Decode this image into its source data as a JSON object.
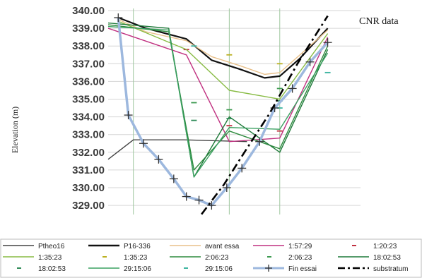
{
  "chart_data": {
    "type": "line",
    "title": "CNR data",
    "ylabel": "Elevation (m)",
    "xlabel": "",
    "ylim": [
      328.5,
      340.0
    ],
    "xlim": [
      0,
      10
    ],
    "grid": true,
    "legend_position": "bottom",
    "yticks": [
      "340.00",
      "339.00",
      "338.00",
      "337.00",
      "336.00",
      "335.00",
      "334.00",
      "333.00",
      "332.00",
      "331.00",
      "330.00",
      "329.00"
    ],
    "series": [
      {
        "name": "Ptheo16",
        "color": "#444444",
        "style": "line",
        "points": [
          [
            0.0,
            331.6
          ],
          [
            1.0,
            332.7
          ],
          [
            3.0,
            332.7
          ],
          [
            5.5,
            332.6
          ]
        ]
      },
      {
        "name": "P16-336",
        "color": "#111111",
        "style": "line",
        "points": [
          [
            0.4,
            339.6
          ],
          [
            1.5,
            339.0
          ],
          [
            3.1,
            338.4
          ],
          [
            4.1,
            337.2
          ],
          [
            5.2,
            336.7
          ],
          [
            6.2,
            336.2
          ],
          [
            6.8,
            336.3
          ],
          [
            7.6,
            337.3
          ],
          [
            8.7,
            339.0
          ]
        ]
      },
      {
        "name": "avant essa",
        "color": "#E8C08A",
        "style": "line",
        "points": [
          [
            0.4,
            339.5
          ],
          [
            1.5,
            338.8
          ],
          [
            3.1,
            338.3
          ],
          [
            4.1,
            337.4
          ],
          [
            5.2,
            336.9
          ],
          [
            6.2,
            336.4
          ],
          [
            6.8,
            336.5
          ],
          [
            7.6,
            337.5
          ],
          [
            8.7,
            338.9
          ]
        ]
      },
      {
        "name": "1:57:29",
        "color": "#C03080",
        "style": "line",
        "points": [
          [
            0.0,
            339.0
          ],
          [
            3.1,
            337.5
          ],
          [
            4.8,
            332.6
          ],
          [
            6.8,
            332.8
          ],
          [
            8.7,
            338.5
          ]
        ]
      },
      {
        "name": "1:20:23",
        "color": "#C03040",
        "style": "dash",
        "points": [
          [
            3.1,
            337.8
          ],
          [
            4.8,
            333.5
          ],
          [
            6.8,
            333.2
          ]
        ]
      },
      {
        "name": "1:35:23",
        "color": "#88BB44",
        "style": "line",
        "points": [
          [
            0.4,
            339.4
          ],
          [
            3.1,
            337.8
          ],
          [
            4.8,
            335.5
          ],
          [
            6.8,
            335.0
          ],
          [
            8.7,
            338.7
          ]
        ]
      },
      {
        "name": "1:35:23",
        "color": "#BBB020",
        "style": "dash",
        "points": [
          [
            4.8,
            337.5
          ],
          [
            6.8,
            337.0
          ]
        ]
      },
      {
        "name": "2:06:23",
        "color": "#2E8B3E",
        "style": "line",
        "points": [
          [
            0.0,
            339.2
          ],
          [
            2.4,
            338.8
          ],
          [
            3.4,
            331.0
          ],
          [
            4.8,
            333.2
          ],
          [
            6.8,
            332.2
          ],
          [
            8.7,
            338.0
          ]
        ]
      },
      {
        "name": "2:06:23",
        "color": "#3C9A50",
        "style": "dash",
        "points": [
          [
            3.4,
            334.8
          ],
          [
            4.8,
            334.4
          ],
          [
            6.8,
            335.6
          ]
        ]
      },
      {
        "name": "18:02:53",
        "color": "#1F7A3A",
        "style": "line",
        "points": [
          [
            0.0,
            339.3
          ],
          [
            2.4,
            339.0
          ],
          [
            3.4,
            330.6
          ],
          [
            4.8,
            334.0
          ],
          [
            6.8,
            332.0
          ],
          [
            8.7,
            337.8
          ]
        ]
      },
      {
        "name": "18:02:53",
        "color": "#2E8B57",
        "style": "dash",
        "points": [
          [
            3.4,
            333.8
          ],
          [
            4.8,
            333.9
          ],
          [
            6.8,
            334.9
          ]
        ]
      },
      {
        "name": "29:15:06",
        "color": "#3AA060",
        "style": "line",
        "points": [
          [
            0.0,
            339.1
          ],
          [
            2.4,
            338.9
          ],
          [
            3.4,
            330.6
          ],
          [
            4.8,
            333.4
          ],
          [
            6.8,
            333.3
          ],
          [
            8.7,
            337.6
          ]
        ]
      },
      {
        "name": "29:15:06",
        "color": "#3CB4A0",
        "style": "dash",
        "points": [
          [
            3.4,
            338.0
          ],
          [
            6.8,
            334.5
          ],
          [
            8.7,
            336.5
          ]
        ]
      },
      {
        "name": "Fin essai",
        "color": "#9DB8DE",
        "style": "marker-line",
        "points": [
          [
            0.4,
            339.6
          ],
          [
            0.8,
            334.1
          ],
          [
            1.4,
            332.5
          ],
          [
            2.0,
            331.6
          ],
          [
            2.6,
            330.5
          ],
          [
            3.1,
            329.5
          ],
          [
            3.6,
            329.3
          ],
          [
            4.1,
            329.0
          ],
          [
            4.7,
            330.0
          ],
          [
            5.3,
            331.1
          ],
          [
            6.0,
            332.6
          ],
          [
            6.6,
            334.5
          ],
          [
            7.3,
            335.6
          ],
          [
            8.0,
            337.1
          ],
          [
            8.7,
            338.2
          ]
        ]
      },
      {
        "name": "substratum",
        "color": "#000000",
        "style": "dashdot",
        "points": [
          [
            3.7,
            328.5
          ],
          [
            4.6,
            330.2
          ],
          [
            5.4,
            332.0
          ],
          [
            6.4,
            334.2
          ],
          [
            7.5,
            337.0
          ],
          [
            8.7,
            339.7
          ]
        ]
      }
    ]
  }
}
